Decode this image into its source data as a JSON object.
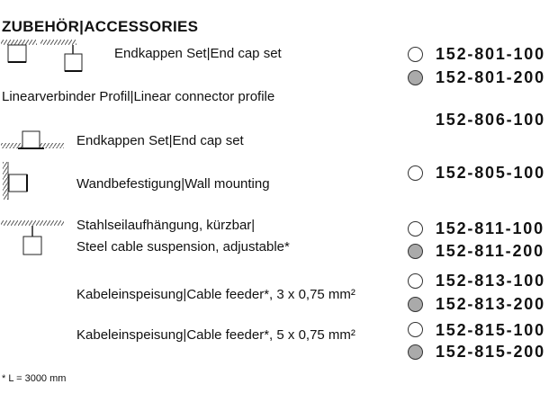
{
  "title": "ZUBEHÖR|ACCESSORIES",
  "rows": [
    {
      "label": "Endkappen Set|End cap set",
      "codes": [
        {
          "code": "152-801-100",
          "fill": "white"
        },
        {
          "code": "152-801-200",
          "fill": "grey"
        }
      ]
    },
    {
      "label": "Linearverbinder Profil|Linear connector profile",
      "codes": [
        {
          "code": "152-806-100"
        }
      ]
    },
    {
      "label": "Endkappen Set|End cap set"
    },
    {
      "label": "Wandbefestigung|Wall mounting",
      "codes": [
        {
          "code": "152-805-100",
          "fill": "white"
        }
      ]
    },
    {
      "label": "Stahlseilaufhängung, kürzbar|",
      "label2": "Steel cable suspension, adjustable*",
      "codes": [
        {
          "code": "152-811-100",
          "fill": "white"
        },
        {
          "code": "152-811-200",
          "fill": "grey"
        }
      ]
    },
    {
      "label": "Kabeleinspeisung|Cable feeder*, 3 x 0,75 mm²",
      "codes": [
        {
          "code": "152-813-100",
          "fill": "white"
        },
        {
          "code": "152-813-200",
          "fill": "grey"
        }
      ]
    },
    {
      "label": "Kabeleinspeisung|Cable feeder*, 5 x 0,75 mm²",
      "codes": [
        {
          "code": "152-815-100",
          "fill": "white"
        },
        {
          "code": "152-815-200",
          "fill": "grey"
        }
      ]
    }
  ],
  "footnote": "* L = 3000 mm",
  "colors": {
    "grey_fill": "#aaaaaa"
  }
}
